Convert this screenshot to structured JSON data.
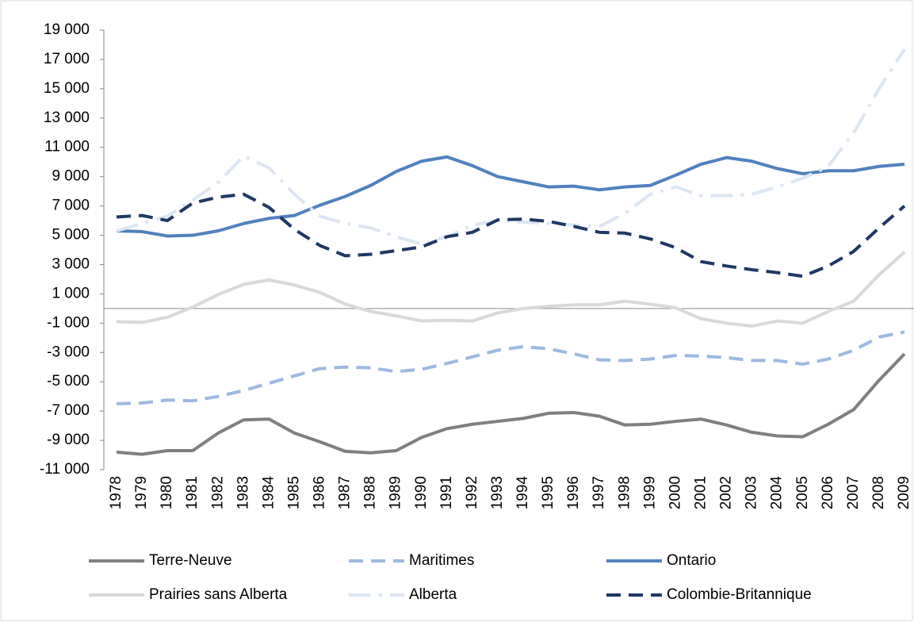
{
  "chart_data": {
    "type": "line",
    "categories": [
      "1978",
      "1979",
      "1980",
      "1981",
      "1982",
      "1983",
      "1984",
      "1985",
      "1986",
      "1987",
      "1988",
      "1989",
      "1990",
      "1991",
      "1992",
      "1993",
      "1994",
      "1995",
      "1996",
      "1997",
      "1998",
      "1999",
      "2000",
      "2001",
      "2002",
      "2003",
      "2004",
      "2005",
      "2006",
      "2007",
      "2008",
      "2009"
    ],
    "series": [
      {
        "name": "Terre-Neuve",
        "color": "#7f7f7f",
        "dash": "solid",
        "values": [
          -9800,
          -9950,
          -9700,
          -9700,
          -8500,
          -7600,
          -7550,
          -8500,
          -9100,
          -9750,
          -9850,
          -9700,
          -8800,
          -8200,
          -7900,
          -7700,
          -7500,
          -7150,
          -7100,
          -7350,
          -7950,
          -7900,
          -7700,
          -7550,
          -7950,
          -8450,
          -8700,
          -8750,
          -7900,
          -6900,
          -4900,
          -3100
        ]
      },
      {
        "name": "Maritimes",
        "color": "#9db9e0",
        "dash": "dash",
        "values": [
          -6500,
          -6450,
          -6250,
          -6300,
          -6000,
          -5600,
          -5100,
          -4600,
          -4100,
          -4000,
          -4050,
          -4300,
          -4150,
          -3750,
          -3300,
          -2850,
          -2600,
          -2750,
          -3100,
          -3500,
          -3550,
          -3450,
          -3200,
          -3250,
          -3350,
          -3550,
          -3550,
          -3800,
          -3450,
          -2850,
          -1950,
          -1600
        ]
      },
      {
        "name": "Ontario",
        "color": "#4f81bd",
        "dash": "solid",
        "values": [
          5300,
          5250,
          4950,
          5000,
          5300,
          5800,
          6150,
          6350,
          7050,
          7650,
          8400,
          9350,
          10050,
          10350,
          9750,
          9000,
          8650,
          8300,
          8350,
          8100,
          8300,
          8400,
          9100,
          9850,
          10300,
          10050,
          9550,
          9200,
          9400,
          9400,
          9700,
          9850
        ]
      },
      {
        "name": "Prairies sans Alberta",
        "color": "#d9d9d9",
        "dash": "solid",
        "values": [
          -900,
          -950,
          -600,
          100,
          950,
          1650,
          1950,
          1600,
          1100,
          300,
          -200,
          -500,
          -850,
          -800,
          -850,
          -300,
          0,
          150,
          250,
          250,
          500,
          300,
          50,
          -700,
          -1000,
          -1200,
          -850,
          -1000,
          -200,
          500,
          2300,
          3850
        ]
      },
      {
        "name": "Alberta",
        "color": "#dce6f2",
        "dash": "dashdot",
        "values": [
          5300,
          5800,
          6300,
          7400,
          8600,
          10400,
          9600,
          7800,
          6300,
          5800,
          5500,
          4900,
          4400,
          4900,
          5700,
          6000,
          5900,
          5800,
          5700,
          5600,
          6500,
          7800,
          8300,
          7700,
          7700,
          7800,
          8300,
          8900,
          9700,
          12000,
          15000,
          17700
        ]
      },
      {
        "name": "Colombie-Britannique",
        "color": "#1f3864",
        "dash": "dash",
        "values": [
          6250,
          6350,
          6000,
          7200,
          7600,
          7800,
          6900,
          5400,
          4300,
          3600,
          3700,
          3950,
          4200,
          4900,
          5200,
          6050,
          6100,
          5950,
          5600,
          5200,
          5150,
          4750,
          4150,
          3200,
          2900,
          2650,
          2450,
          2200,
          2900,
          3900,
          5500,
          7000
        ]
      }
    ],
    "ylim": [
      -11000,
      19000
    ],
    "yticks": [
      {
        "value": -11000,
        "label": "-11 000"
      },
      {
        "value": -9000,
        "label": "-9 000"
      },
      {
        "value": -7000,
        "label": "-7 000"
      },
      {
        "value": -5000,
        "label": "-5 000"
      },
      {
        "value": -3000,
        "label": "-3 000"
      },
      {
        "value": -1000,
        "label": "-1 000"
      },
      {
        "value": 1000,
        "label": "1 000"
      },
      {
        "value": 3000,
        "label": "3 000"
      },
      {
        "value": 5000,
        "label": "5 000"
      },
      {
        "value": 7000,
        "label": "7 000"
      },
      {
        "value": 9000,
        "label": "9 000"
      },
      {
        "value": 11000,
        "label": "11 000"
      },
      {
        "value": 13000,
        "label": "13 000"
      },
      {
        "value": 15000,
        "label": "15 000"
      },
      {
        "value": 17000,
        "label": "17 000"
      },
      {
        "value": 19000,
        "label": "19 000"
      }
    ],
    "grid": false,
    "legend": "bottom"
  }
}
